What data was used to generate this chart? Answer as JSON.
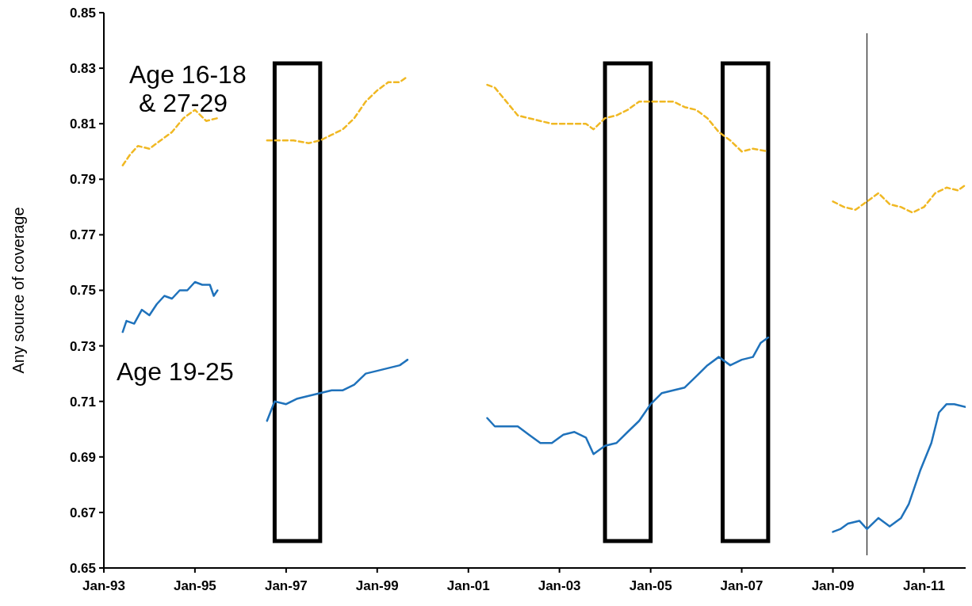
{
  "chart_data": {
    "type": "line",
    "ylabel": "Any source of coverage",
    "xlim": [
      "1993-01",
      "2011-12"
    ],
    "xticks": [
      {
        "value": "1993-01",
        "label": "Jan-93"
      },
      {
        "value": "1995-01",
        "label": "Jan-95"
      },
      {
        "value": "1997-01",
        "label": "Jan-97"
      },
      {
        "value": "1999-01",
        "label": "Jan-99"
      },
      {
        "value": "2001-01",
        "label": "Jan-01"
      },
      {
        "value": "2003-01",
        "label": "Jan-03"
      },
      {
        "value": "2005-01",
        "label": "Jan-05"
      },
      {
        "value": "2007-01",
        "label": "Jan-07"
      },
      {
        "value": "2009-01",
        "label": "Jan-09"
      },
      {
        "value": "2011-01",
        "label": "Jan-11"
      }
    ],
    "ylim": [
      0.65,
      0.85
    ],
    "yticks": [
      0.65,
      0.67,
      0.69,
      0.71,
      0.73,
      0.75,
      0.77,
      0.79,
      0.81,
      0.83,
      0.85
    ],
    "grid": false,
    "marker": "none",
    "series": [
      {
        "name": "Age 16-18 & 27-29",
        "color": "#f0b823",
        "line_style": "dashed",
        "x": [
          "1993-06",
          "1993-08",
          "1993-10",
          "1994-01",
          "1994-04",
          "1994-07",
          "1994-10",
          "1995-01",
          "1995-04",
          "1995-07",
          "1996-01",
          "1996-08",
          "1996-11",
          "1997-03",
          "1997-07",
          "1997-10",
          "1998-01",
          "1998-04",
          "1998-07",
          "1998-10",
          "1999-01",
          "1999-04",
          "1999-07",
          "1999-09",
          "2000-06",
          "2001-06",
          "2001-08",
          "2001-11",
          "2002-02",
          "2002-05",
          "2002-08",
          "2002-11",
          "2003-02",
          "2003-05",
          "2003-08",
          "2003-10",
          "2004-01",
          "2004-04",
          "2004-07",
          "2004-10",
          "2005-01",
          "2005-04",
          "2005-07",
          "2005-10",
          "2006-01",
          "2006-04",
          "2006-07",
          "2006-10",
          "2007-01",
          "2007-04",
          "2007-08",
          "2008-06",
          "2009-01",
          "2009-04",
          "2009-07",
          "2009-10",
          "2010-01",
          "2010-04",
          "2010-07",
          "2010-10",
          "2011-01",
          "2011-04",
          "2011-07",
          "2011-10",
          "2011-12"
        ],
        "values": [
          0.795,
          0.799,
          0.802,
          0.801,
          0.804,
          0.807,
          0.812,
          0.815,
          0.811,
          0.812,
          null,
          0.804,
          0.804,
          0.804,
          0.803,
          0.804,
          0.806,
          0.808,
          0.812,
          0.818,
          0.822,
          0.825,
          0.825,
          0.827,
          null,
          0.824,
          0.823,
          0.818,
          0.813,
          0.812,
          0.811,
          0.81,
          0.81,
          0.81,
          0.81,
          0.808,
          0.812,
          0.813,
          0.815,
          0.818,
          0.818,
          0.818,
          0.818,
          0.816,
          0.815,
          0.812,
          0.807,
          0.804,
          0.8,
          0.801,
          0.8,
          null,
          0.782,
          0.78,
          0.779,
          0.782,
          0.785,
          0.781,
          0.78,
          0.778,
          0.78,
          0.785,
          0.787,
          0.786,
          0.788
        ]
      },
      {
        "name": "Age 19-25",
        "color": "#1f72bb",
        "line_style": "solid",
        "x": [
          "1993-06",
          "1993-07",
          "1993-09",
          "1993-11",
          "1994-01",
          "1994-03",
          "1994-05",
          "1994-07",
          "1994-09",
          "1994-11",
          "1995-01",
          "1995-03",
          "1995-05",
          "1995-06",
          "1995-07",
          "1996-01",
          "1996-08",
          "1996-10",
          "1997-01",
          "1997-04",
          "1997-07",
          "1997-10",
          "1998-01",
          "1998-04",
          "1998-07",
          "1998-10",
          "1999-01",
          "1999-04",
          "1999-07",
          "1999-09",
          "2000-06",
          "2001-06",
          "2001-08",
          "2001-11",
          "2002-02",
          "2002-05",
          "2002-08",
          "2002-11",
          "2003-02",
          "2003-05",
          "2003-08",
          "2003-10",
          "2004-01",
          "2004-04",
          "2004-07",
          "2004-10",
          "2005-01",
          "2005-04",
          "2005-07",
          "2005-10",
          "2006-01",
          "2006-04",
          "2006-07",
          "2006-10",
          "2007-01",
          "2007-04",
          "2007-06",
          "2007-08",
          "2008-06",
          "2009-01",
          "2009-03",
          "2009-05",
          "2009-08",
          "2009-10",
          "2010-01",
          "2010-04",
          "2010-07",
          "2010-09",
          "2010-12",
          "2011-03",
          "2011-05",
          "2011-07",
          "2011-09",
          "2011-12"
        ],
        "values": [
          0.735,
          0.739,
          0.738,
          0.743,
          0.741,
          0.745,
          0.748,
          0.747,
          0.75,
          0.75,
          0.753,
          0.752,
          0.752,
          0.748,
          0.75,
          null,
          0.703,
          0.71,
          0.709,
          0.711,
          0.712,
          0.713,
          0.714,
          0.714,
          0.716,
          0.72,
          0.721,
          0.722,
          0.723,
          0.725,
          null,
          0.704,
          0.701,
          0.701,
          0.701,
          0.698,
          0.695,
          0.695,
          0.698,
          0.699,
          0.697,
          0.691,
          0.694,
          0.695,
          0.699,
          0.703,
          0.709,
          0.713,
          0.714,
          0.715,
          0.719,
          0.723,
          0.726,
          0.723,
          0.725,
          0.726,
          0.731,
          0.733,
          null,
          0.663,
          0.664,
          0.666,
          0.667,
          0.664,
          0.668,
          0.665,
          0.668,
          0.673,
          0.685,
          0.695,
          0.706,
          0.709,
          0.709,
          0.708
        ]
      }
    ],
    "bands": [
      {
        "axis": "x",
        "from": "1996-10",
        "to": "1997-10",
        "color": "#000000"
      },
      {
        "axis": "x",
        "from": "2004-01",
        "to": "2005-01",
        "color": "#000000"
      },
      {
        "axis": "x",
        "from": "2006-08",
        "to": "2007-08",
        "color": "#000000"
      }
    ],
    "ref_lines": [
      {
        "axis": "x",
        "value": "2009-10",
        "color": "#000000"
      }
    ]
  }
}
